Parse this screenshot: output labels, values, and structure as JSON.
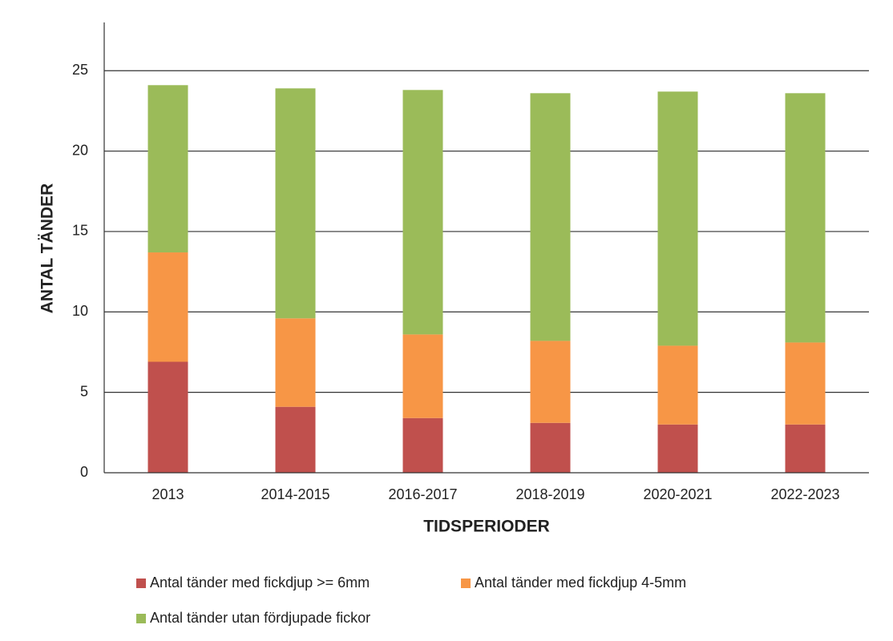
{
  "chart_data": {
    "type": "stacked_bar",
    "x_label": "TIDSPERIODER",
    "y_label": "ANTAL TÄNDER",
    "categories": [
      "2013",
      "2014-2015",
      "2016-2017",
      "2018-2019",
      "2020-2021",
      "2022-2023"
    ],
    "series": [
      {
        "name": "Antal tänder med fickdjup >= 6mm",
        "color": "#c0504d",
        "values": [
          6.9,
          4.1,
          3.4,
          3.1,
          3.0,
          3.0
        ]
      },
      {
        "name": "Antal tänder med fickdjup 4-5mm",
        "color": "#f79646",
        "values": [
          6.8,
          5.5,
          5.2,
          5.1,
          4.9,
          5.1
        ]
      },
      {
        "name": "Antal tänder utan fördjupade fickor",
        "color": "#9bbb59",
        "values": [
          10.4,
          14.3,
          15.2,
          15.4,
          15.8,
          15.5
        ]
      }
    ],
    "ylim": [
      0,
      28
    ],
    "yticks": [
      0,
      5,
      10,
      15,
      20,
      25
    ],
    "grid": true
  }
}
